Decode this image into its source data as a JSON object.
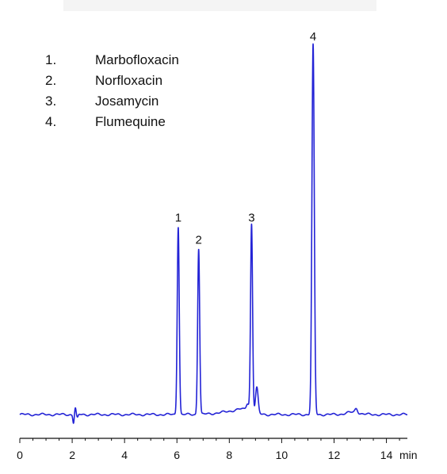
{
  "chart_data": {
    "type": "line",
    "title": "",
    "xlabel": "",
    "ylabel": "",
    "x_unit": "min",
    "xlim": [
      0,
      14.8
    ],
    "x_ticks": [
      0,
      2,
      4,
      6,
      8,
      10,
      12,
      14
    ],
    "grid": false,
    "line_color": "#2323d6",
    "legend": [
      {
        "num": "1.",
        "name": "Marbofloxacin"
      },
      {
        "num": "2.",
        "name": "Norfloxacin"
      },
      {
        "num": "3.",
        "name": "Josamycin"
      },
      {
        "num": "4.",
        "name": "Flumequine"
      }
    ],
    "peaks": [
      {
        "label": "1",
        "time": 6.05,
        "height": 0.51
      },
      {
        "label": "2",
        "time": 6.83,
        "height": 0.45
      },
      {
        "label": "3",
        "time": 8.85,
        "height": 0.51
      },
      {
        "label": "4",
        "time": 11.2,
        "height": 1.0
      }
    ],
    "minor_features": [
      {
        "time": 9.05,
        "height": 0.07
      },
      {
        "time": 8.7,
        "height": 0.02
      },
      {
        "time": 12.85,
        "height": 0.012
      }
    ]
  }
}
